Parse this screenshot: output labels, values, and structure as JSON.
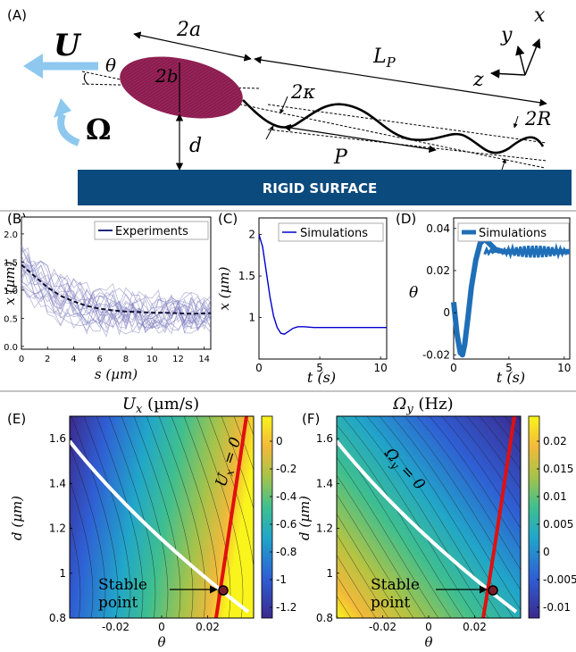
{
  "panel_labels": [
    "(A)",
    "(B)",
    "(C)",
    "(D)",
    "(E)",
    "(F)"
  ],
  "schematic": {
    "surface_label": "RIGID SURFACE",
    "labels": {
      "U": "U",
      "Omega": "Ω",
      "theta": "θ",
      "two_a": "2a",
      "two_b": "2b",
      "L_P": "L",
      "L_P_sub": "P",
      "two_kappa": "2κ",
      "d": "d",
      "P": "P",
      "two_R": "2R",
      "x": "x",
      "y": "y",
      "z": "z"
    },
    "colors": {
      "body": "#8b1a4e",
      "surface": "#0b4a7d",
      "arrow": "#8ec8ef"
    }
  },
  "chart_data": [
    {
      "id": "B",
      "type": "line",
      "xlabel": "s (µm)",
      "ylabel": "x (µm)",
      "xlim": [
        0,
        14.5
      ],
      "ylim": [
        -0.05,
        2.3
      ],
      "xticks": [
        "0",
        "2",
        "4",
        "6",
        "8",
        "10",
        "12",
        "14"
      ],
      "yticks": [
        "0.0",
        "0.5",
        "1.0",
        "1.5",
        "2.0"
      ],
      "legend": "Experiments",
      "mean_series": {
        "x": [
          0,
          1,
          2,
          3,
          4,
          5,
          6,
          7,
          8,
          9,
          10,
          11,
          12,
          13,
          14.5
        ],
        "y": [
          1.45,
          1.25,
          1.05,
          0.9,
          0.8,
          0.72,
          0.67,
          0.64,
          0.62,
          0.61,
          0.6,
          0.6,
          0.59,
          0.58,
          0.59
        ]
      },
      "color": "#1f2a7a"
    },
    {
      "id": "C",
      "type": "line",
      "xlabel": "t (s)",
      "ylabel": "x (µm)",
      "xlim": [
        0,
        10.5
      ],
      "ylim": [
        0.5,
        2.2
      ],
      "xticks": [
        "0",
        "5",
        "10"
      ],
      "yticks": [
        "1",
        "1.5",
        "2"
      ],
      "legend": "Simulations",
      "series": {
        "x": [
          0,
          0.3,
          0.6,
          0.9,
          1.2,
          1.5,
          1.8,
          2.1,
          2.4,
          2.8,
          3.2,
          3.7,
          4.5,
          6,
          8,
          10.5
        ],
        "y": [
          2.0,
          1.85,
          1.55,
          1.25,
          1.02,
          0.88,
          0.81,
          0.8,
          0.83,
          0.87,
          0.89,
          0.89,
          0.88,
          0.88,
          0.88,
          0.88
        ]
      },
      "color": "#0000cc"
    },
    {
      "id": "D",
      "type": "line",
      "xlabel": "t (s)",
      "ylabel": "θ",
      "xlim": [
        0,
        10.5
      ],
      "ylim": [
        -0.022,
        0.045
      ],
      "xticks": [
        "0",
        "5",
        "10"
      ],
      "yticks": [
        "-0.02",
        "0",
        "0.02",
        "0.04"
      ],
      "legend": "Simulations",
      "series": {
        "x": [
          0,
          0.3,
          0.6,
          0.8,
          1.0,
          1.3,
          1.6,
          2.0,
          2.4,
          2.8,
          3.2,
          3.8,
          4.5,
          5.5,
          7,
          10.5
        ],
        "y": [
          0.005,
          -0.01,
          -0.019,
          -0.02,
          -0.015,
          -0.002,
          0.012,
          0.025,
          0.033,
          0.035,
          0.033,
          0.03,
          0.029,
          0.029,
          0.029,
          0.029
        ]
      },
      "color": "#1f6fb8"
    },
    {
      "id": "E",
      "type": "heatmap",
      "title": "U",
      "title_sub": "x",
      "title_unit": " (µm/s)",
      "xlabel": "θ",
      "ylabel": "d (µm)",
      "xlim": [
        -0.04,
        0.04
      ],
      "ylim": [
        0.8,
        1.7
      ],
      "xticks": [
        "-0.02",
        "0",
        "0.02"
      ],
      "yticks": [
        "0.8",
        "1",
        "1.2",
        "1.4",
        "1.6"
      ],
      "colorbar_ticks": [
        "0",
        "-0.2",
        "-0.4",
        "-0.6",
        "-0.8",
        "-1",
        "-1.2"
      ],
      "contour_annotation": "U",
      "contour_annotation_sub": "x",
      "contour_annotation_tail": " = 0",
      "stable_point_label_line1": "Stable",
      "stable_point_label_line2": "point",
      "stable_point": {
        "theta": 0.028,
        "d": 0.93
      }
    },
    {
      "id": "F",
      "type": "heatmap",
      "title": "Ω",
      "title_sub": "y",
      "title_unit": " (Hz)",
      "xlabel": "θ",
      "ylabel": "d (µm)",
      "xlim": [
        -0.04,
        0.04
      ],
      "ylim": [
        0.8,
        1.7
      ],
      "xticks": [
        "-0.02",
        "0",
        "0.02"
      ],
      "yticks": [
        "0.8",
        "1",
        "1.2",
        "1.4",
        "1.6"
      ],
      "colorbar_ticks": [
        "0.02",
        "0.015",
        "0.01",
        "0.005",
        "0",
        "-0.005",
        "-0.01"
      ],
      "contour_annotation": "Ω",
      "contour_annotation_sub": "y",
      "contour_annotation_tail": " = 0",
      "stable_point_label_line1": "Stable",
      "stable_point_label_line2": "point",
      "stable_point": {
        "theta": 0.028,
        "d": 0.93
      }
    }
  ]
}
